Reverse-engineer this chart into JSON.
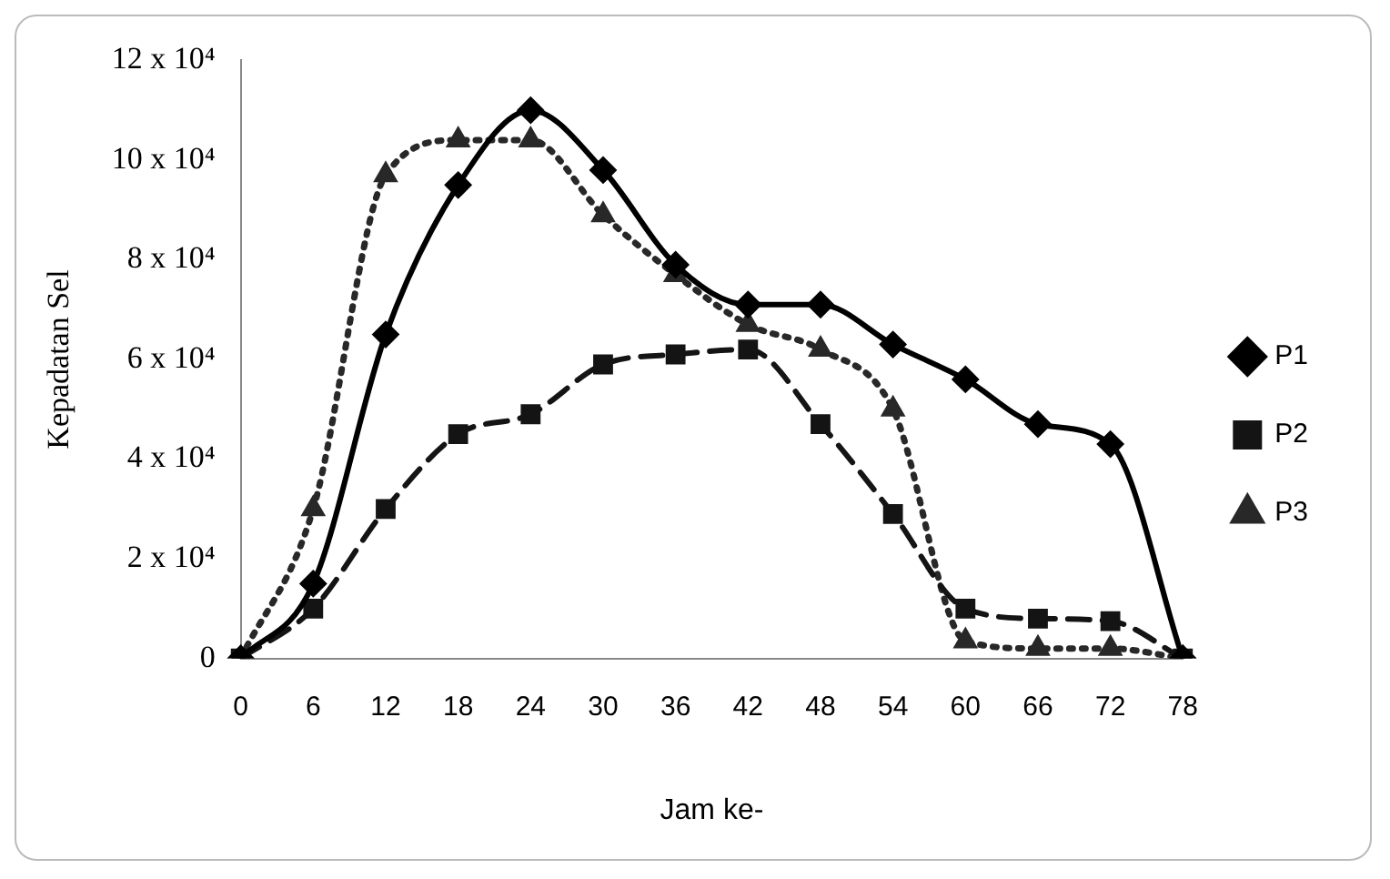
{
  "chart_data": {
    "type": "line",
    "xlabel": "Jam ke-",
    "ylabel": "Kepadatan Sel",
    "categories": [
      "0",
      "6",
      "12",
      "18",
      "24",
      "30",
      "36",
      "42",
      "48",
      "54",
      "60",
      "66",
      "72",
      "78"
    ],
    "series": [
      {
        "name": "P1",
        "color": "#000000",
        "marker": "diamond",
        "line_style": "solid",
        "values": [
          0,
          15000,
          65000,
          95000,
          110000,
          98000,
          79000,
          71000,
          71000,
          63000,
          56000,
          47000,
          43000,
          0
        ]
      },
      {
        "name": "P2",
        "color": "#141414",
        "marker": "square",
        "line_style": "dashed",
        "values": [
          0,
          10000,
          30000,
          45000,
          49000,
          59000,
          61000,
          62000,
          47000,
          29000,
          10000,
          8000,
          7500,
          0
        ]
      },
      {
        "name": "P3",
        "color": "#282828",
        "marker": "triangle",
        "line_style": "dotted",
        "values": [
          0,
          30000,
          97000,
          104000,
          104000,
          89000,
          77000,
          67000,
          62000,
          50000,
          3500,
          2000,
          2000,
          0
        ]
      }
    ],
    "ylim": [
      0,
      120000
    ],
    "yticks": [
      0,
      {
        "value": 20000,
        "label": "2 x 10⁴"
      },
      {
        "value": 40000,
        "label": "4 x 10⁴"
      },
      {
        "value": 60000,
        "label": "6 x 10⁴"
      },
      {
        "value": 80000,
        "label": "8 x 10⁴"
      },
      {
        "value": 100000,
        "label": "10 x 10⁴"
      },
      {
        "value": 120000,
        "label": "12 x 10⁴"
      }
    ],
    "grid": false,
    "legend": "right"
  }
}
